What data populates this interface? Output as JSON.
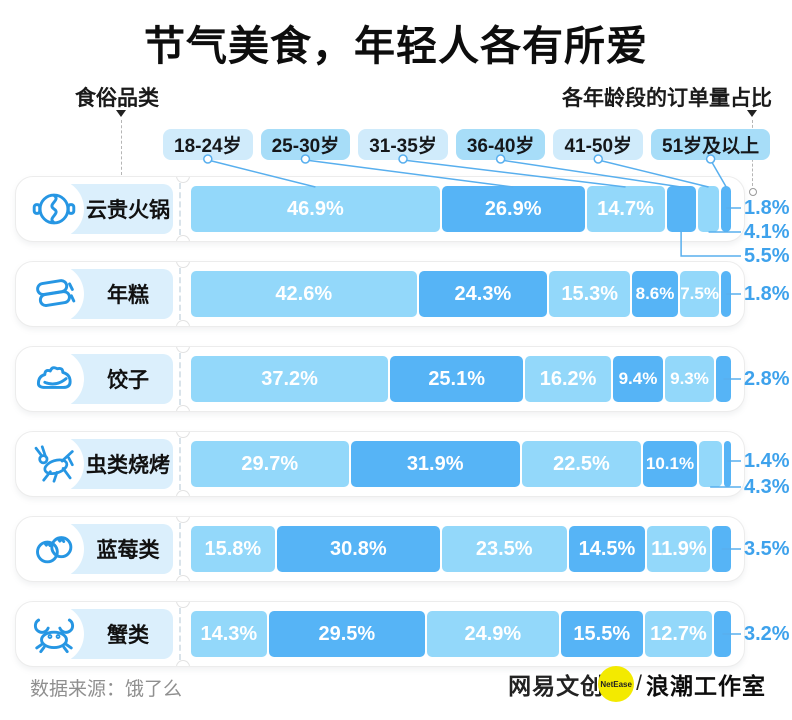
{
  "title": "节气美食，年轻人各有所爱",
  "left_axis_label": "食俗品类",
  "right_axis_label": "各年龄段的订单量占比",
  "legend": [
    "18-24岁",
    "25-30岁",
    "31-35岁",
    "36-40岁",
    "41-50岁",
    "51岁及以上"
  ],
  "colors": {
    "segment_light": "#93D8FA",
    "segment_dark": "#56B4F6",
    "legend_light": "#D0EBFB",
    "legend_dark": "#A7DDF8",
    "label_chip_bg": "#DBEFFC",
    "callout_text": "#3EA2EC",
    "leader_line": "#58AFEE",
    "icon_stroke": "#2696E3",
    "netease_yellow": "#F3EA00"
  },
  "rows": [
    {
      "label": "云贵火锅",
      "icon": "hotpot-icon",
      "segments": [
        {
          "v": 46.9,
          "label": "46.9%"
        },
        {
          "v": 26.9,
          "label": "26.9%"
        },
        {
          "v": 14.7,
          "label": "14.7%"
        },
        {
          "v": 5.5,
          "label": "5.5%"
        },
        {
          "v": 4.1,
          "label": "4.1%"
        },
        {
          "v": 1.8,
          "label": "1.8%"
        }
      ],
      "callouts": [
        {
          "label": "1.8%",
          "seg": 5
        },
        {
          "label": "4.1%",
          "seg": 4
        },
        {
          "label": "5.5%",
          "seg": 3
        }
      ]
    },
    {
      "label": "年糕",
      "icon": "rice-cake-icon",
      "segments": [
        {
          "v": 42.6,
          "label": "42.6%"
        },
        {
          "v": 24.3,
          "label": "24.3%"
        },
        {
          "v": 15.3,
          "label": "15.3%"
        },
        {
          "v": 8.6,
          "label": "8.6%"
        },
        {
          "v": 7.5,
          "label": "7.5%"
        },
        {
          "v": 1.8,
          "label": "1.8%"
        }
      ],
      "callouts": [
        {
          "label": "1.8%",
          "seg": 5
        }
      ]
    },
    {
      "label": "饺子",
      "icon": "dumpling-icon",
      "segments": [
        {
          "v": 37.2,
          "label": "37.2%"
        },
        {
          "v": 25.1,
          "label": "25.1%"
        },
        {
          "v": 16.2,
          "label": "16.2%"
        },
        {
          "v": 9.4,
          "label": "9.4%"
        },
        {
          "v": 9.3,
          "label": "9.3%"
        },
        {
          "v": 2.8,
          "label": "2.8%"
        }
      ],
      "callouts": [
        {
          "label": "2.8%",
          "seg": 5
        }
      ]
    },
    {
      "label": "虫类烧烤",
      "icon": "insect-icon",
      "segments": [
        {
          "v": 29.7,
          "label": "29.7%"
        },
        {
          "v": 31.9,
          "label": "31.9%"
        },
        {
          "v": 22.5,
          "label": "22.5%"
        },
        {
          "v": 10.1,
          "label": "10.1%"
        },
        {
          "v": 4.3,
          "label": "4.3%"
        },
        {
          "v": 1.4,
          "label": "1.4%"
        }
      ],
      "callouts": [
        {
          "label": "1.4%",
          "seg": 5
        },
        {
          "label": "4.3%",
          "seg": 4
        }
      ]
    },
    {
      "label": "蓝莓类",
      "icon": "blueberry-icon",
      "segments": [
        {
          "v": 15.8,
          "label": "15.8%"
        },
        {
          "v": 30.8,
          "label": "30.8%"
        },
        {
          "v": 23.5,
          "label": "23.5%"
        },
        {
          "v": 14.5,
          "label": "14.5%"
        },
        {
          "v": 11.9,
          "label": "11.9%"
        },
        {
          "v": 3.5,
          "label": "3.5%"
        }
      ],
      "callouts": [
        {
          "label": "3.5%",
          "seg": 5
        }
      ]
    },
    {
      "label": "蟹类",
      "icon": "crab-icon",
      "segments": [
        {
          "v": 14.3,
          "label": "14.3%"
        },
        {
          "v": 29.5,
          "label": "29.5%"
        },
        {
          "v": 24.9,
          "label": "24.9%"
        },
        {
          "v": 15.5,
          "label": "15.5%"
        },
        {
          "v": 12.7,
          "label": "12.7%"
        },
        {
          "v": 3.2,
          "label": "3.2%"
        }
      ],
      "callouts": [
        {
          "label": "3.2%",
          "seg": 5
        }
      ]
    }
  ],
  "chart_data": {
    "type": "bar",
    "orientation": "horizontal",
    "stacked": true,
    "unit": "percent",
    "title": "节气美食，年轻人各有所爱",
    "categories": [
      "云贵火锅",
      "年糕",
      "饺子",
      "虫类烧烤",
      "蓝莓类",
      "蟹类"
    ],
    "series": [
      {
        "name": "18-24岁",
        "values": [
          46.9,
          42.6,
          37.2,
          29.7,
          15.8,
          14.3
        ]
      },
      {
        "name": "25-30岁",
        "values": [
          26.9,
          24.3,
          25.1,
          31.9,
          30.8,
          29.5
        ]
      },
      {
        "name": "31-35岁",
        "values": [
          14.7,
          15.3,
          16.2,
          22.5,
          23.5,
          24.9
        ]
      },
      {
        "name": "36-40岁",
        "values": [
          5.5,
          8.6,
          9.4,
          10.1,
          14.5,
          15.5
        ]
      },
      {
        "name": "41-50岁",
        "values": [
          4.1,
          7.5,
          9.3,
          4.3,
          11.9,
          12.7
        ]
      },
      {
        "name": "51岁及以上",
        "values": [
          1.8,
          1.8,
          2.8,
          1.4,
          3.5,
          3.2
        ]
      }
    ],
    "xlim": [
      0,
      100
    ],
    "legend_position": "top",
    "grid": false
  },
  "footer": {
    "source": "数据来源：饿了么",
    "brand": "网易文创",
    "brand_badge": "NetEase",
    "divider": "/",
    "studio": "浪潮工作室"
  }
}
